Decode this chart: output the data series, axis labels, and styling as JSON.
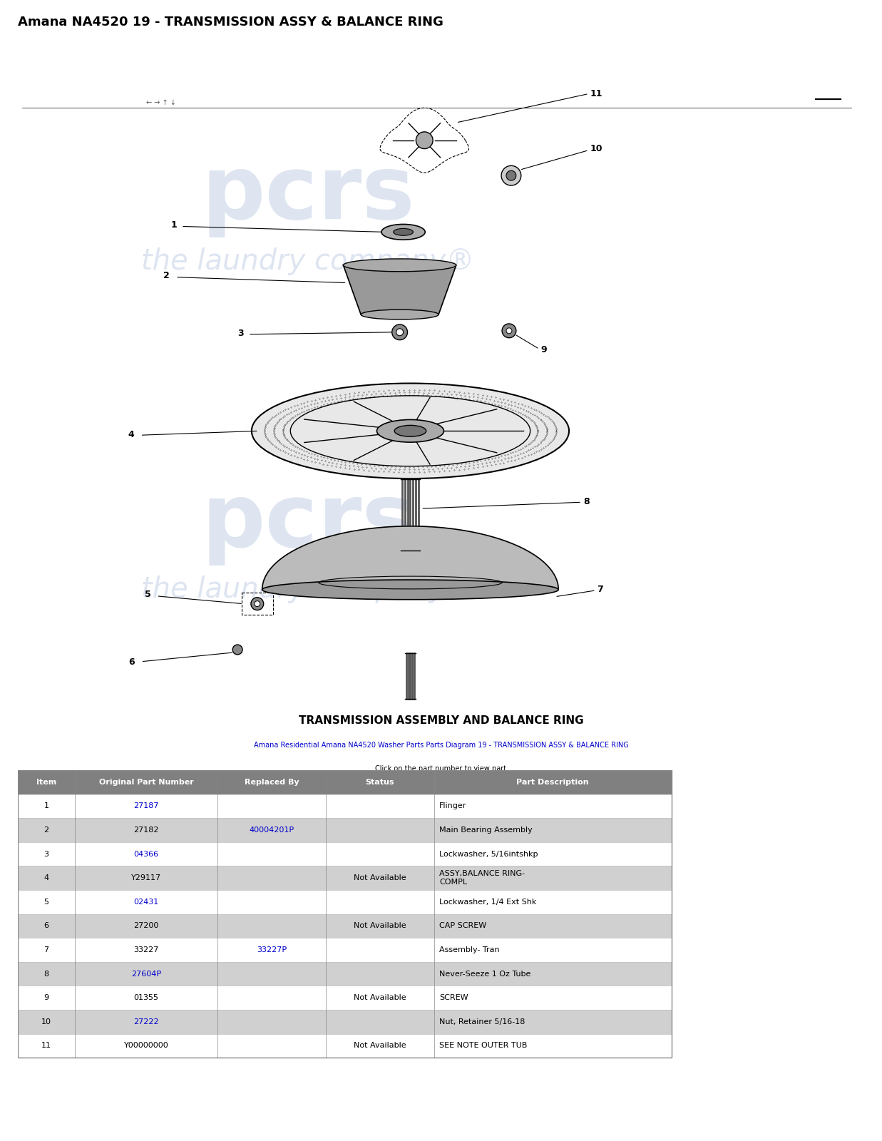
{
  "title": "Amana NA4520 19 - TRANSMISSION ASSY & BALANCE RING",
  "section_title": "TRANSMISSION ASSEMBLY AND BALANCE RING",
  "subtitle_line1": "Amana Residential Amana NA4520 Washer Parts Parts Diagram 19 - TRANSMISSION ASSY & BALANCE RING",
  "subtitle_line2": "Click on the part number to view part",
  "bg_color": "#ffffff",
  "watermark_color": "#c8d4e8",
  "table_header_bg": "#808080",
  "table_header_color": "#ffffff",
  "table_row_odd_bg": "#ffffff",
  "table_row_even_bg": "#d0d0d0",
  "link_color": "#0000cc",
  "text_color": "#000000",
  "columns": [
    "Item",
    "Original Part Number",
    "Replaced By",
    "Status",
    "Part Description"
  ],
  "rows": [
    [
      "1",
      "27187",
      "",
      "",
      "Flinger"
    ],
    [
      "2",
      "27182",
      "40004201P",
      "",
      "Main Bearing Assembly"
    ],
    [
      "3",
      "04366",
      "",
      "",
      "Lockwasher, 5/16intshkp"
    ],
    [
      "4",
      "Y29117",
      "",
      "Not Available",
      "ASSY,BALANCE RING-\nCOMPL"
    ],
    [
      "5",
      "02431",
      "",
      "",
      "Lockwasher, 1/4 Ext Shk"
    ],
    [
      "6",
      "27200",
      "",
      "Not Available",
      "CAP SCREW"
    ],
    [
      "7",
      "33227",
      "33227P",
      "",
      "Assembly- Tran"
    ],
    [
      "8",
      "27604P",
      "",
      "",
      "Never-Seeze 1 Oz Tube"
    ],
    [
      "9",
      "01355",
      "",
      "Not Available",
      "SCREW"
    ],
    [
      "10",
      "27222",
      "",
      "",
      "Nut, Retainer 5/16-18"
    ],
    [
      "11",
      "Y00000000",
      "",
      "Not Available",
      "SEE NOTE OUTER TUB"
    ]
  ],
  "linked_part_numbers": [
    "27187",
    "40004201P",
    "04366",
    "02431",
    "33227P",
    "27604P",
    "27222"
  ],
  "col1_link": [
    "27187",
    "27182",
    "04366",
    "Y29117",
    "02431",
    "27200",
    "33227",
    "27604P",
    "01355",
    "27222",
    "Y00000000"
  ],
  "col2_link": [
    "",
    "40004201P",
    "",
    "",
    "",
    "",
    "33227P",
    "",
    "",
    "",
    ""
  ],
  "col1_is_link": [
    true,
    false,
    true,
    false,
    true,
    false,
    false,
    true,
    false,
    true,
    false
  ],
  "col2_is_link": [
    false,
    true,
    false,
    false,
    false,
    false,
    true,
    false,
    false,
    false,
    false
  ]
}
